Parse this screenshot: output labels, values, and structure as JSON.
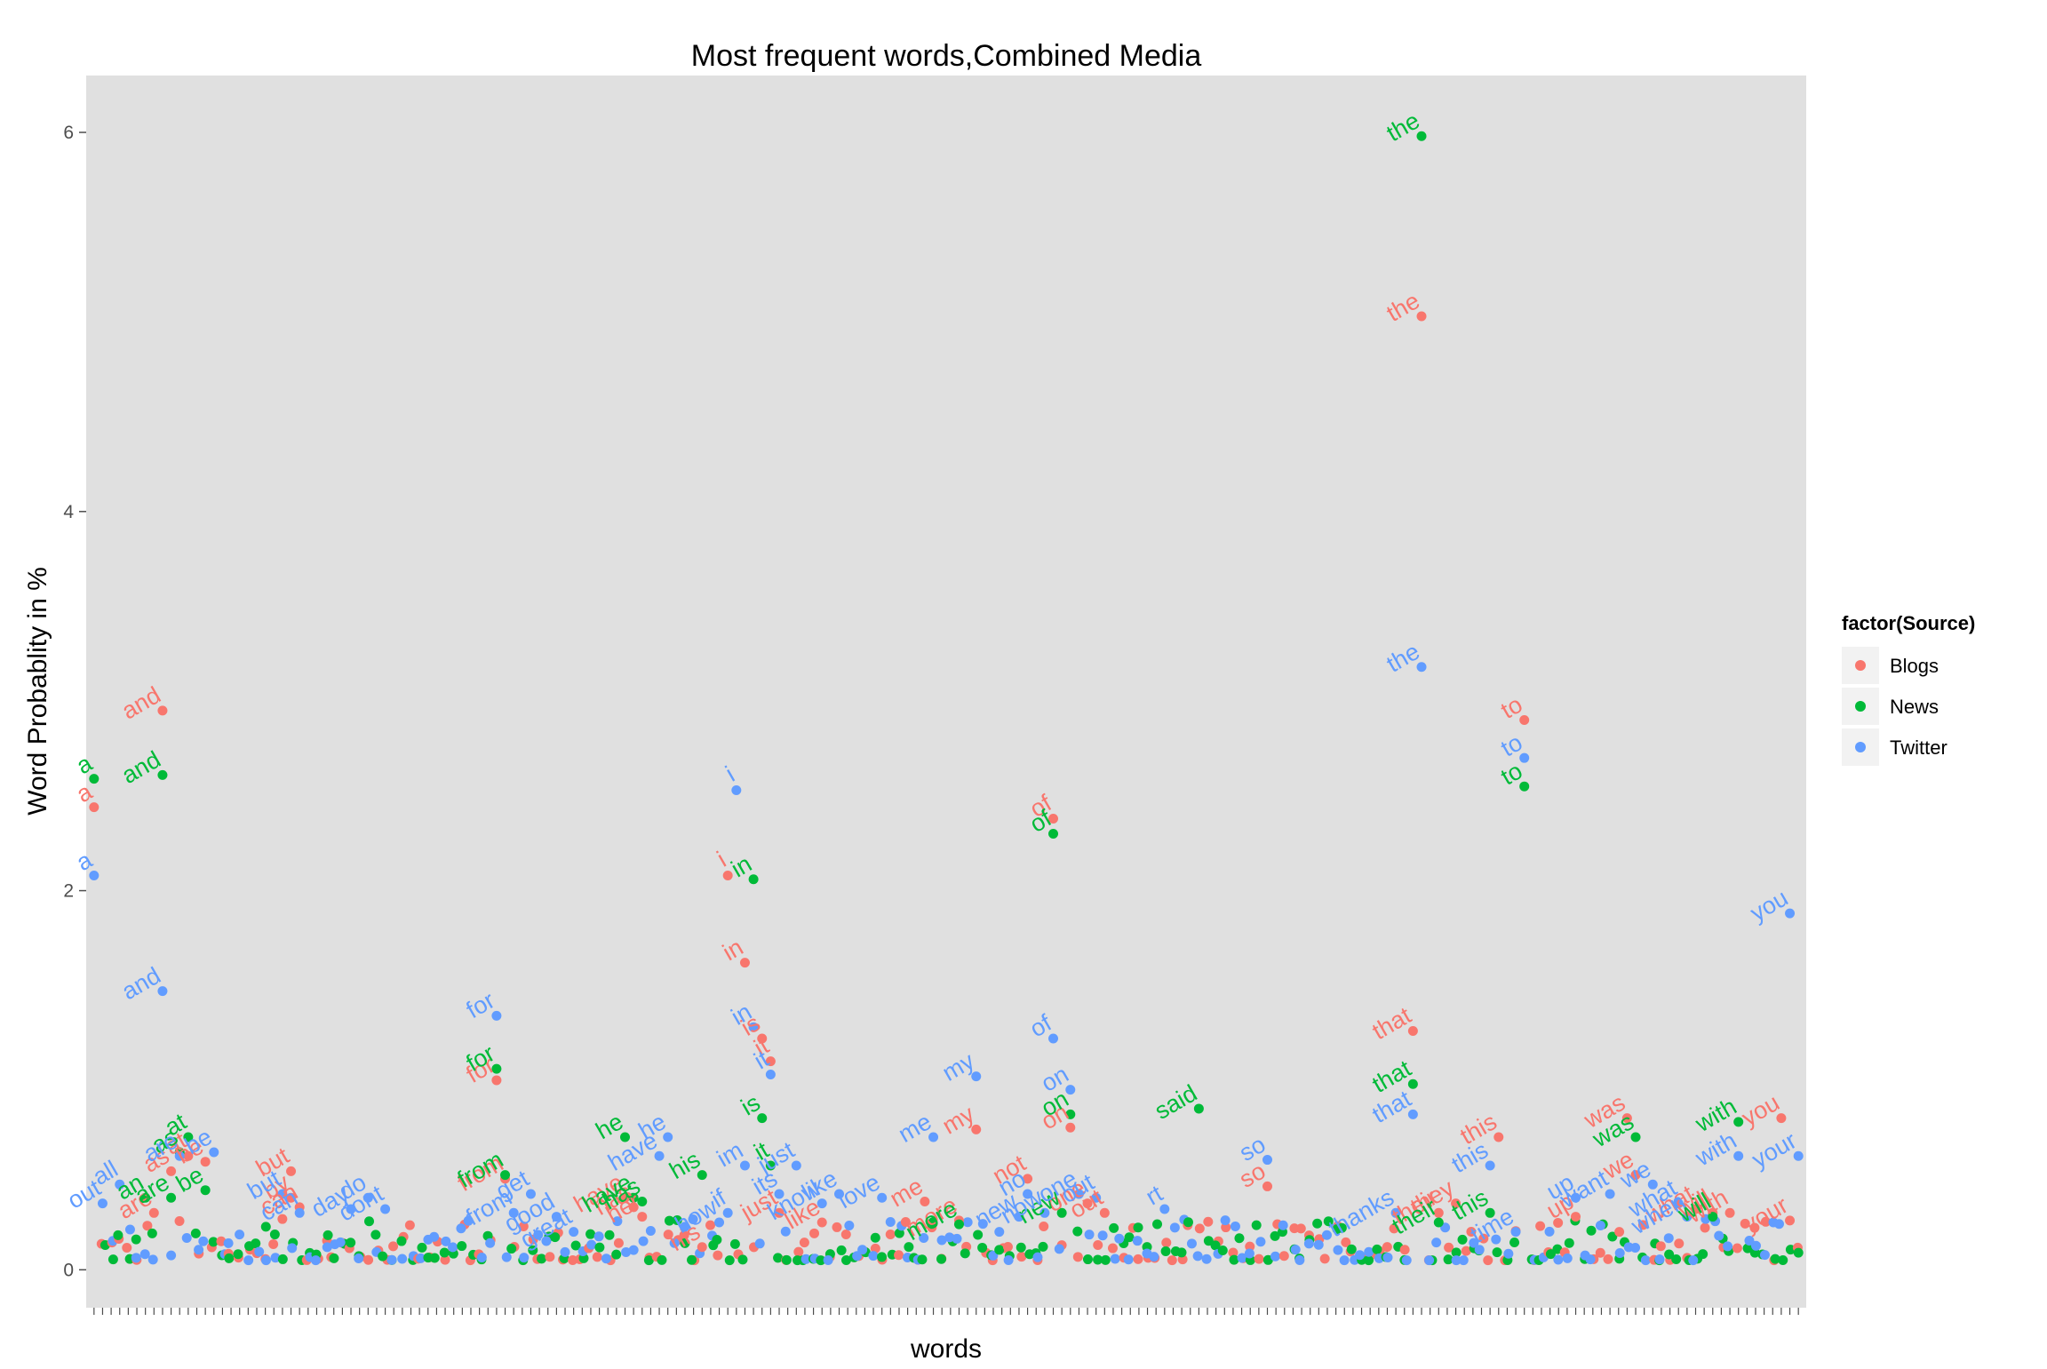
{
  "chart_data": {
    "type": "scatter",
    "title": "Most frequent words,Combined Media",
    "xlabel": "words",
    "ylabel": "Word Probablity in %",
    "ylim": [
      -0.2,
      6.3
    ],
    "yticks": [
      0,
      2,
      4,
      6
    ],
    "x_count": 200,
    "grid": false,
    "panel_background": "#e0e0e0",
    "legend": {
      "title": "factor(Source)",
      "placement": "right",
      "entries": [
        {
          "name": "Blogs",
          "color": "#F8766D"
        },
        {
          "name": "News",
          "color": "#00BA38"
        },
        {
          "name": "Twitter",
          "color": "#619CFF"
        }
      ]
    },
    "series": [
      {
        "name": "Blogs",
        "color": "#F8766D",
        "points": [
          {
            "x": 1,
            "y": 2.44,
            "label": "a"
          },
          {
            "x": 9,
            "y": 2.95,
            "label": "and"
          },
          {
            "x": 8,
            "y": 0.3,
            "label": "are"
          },
          {
            "x": 10,
            "y": 0.52,
            "label": "as"
          },
          {
            "x": 12,
            "y": 0.6,
            "label": "at"
          },
          {
            "x": 14,
            "y": 0.57,
            "label": "be"
          },
          {
            "x": 24,
            "y": 0.52,
            "label": "but"
          },
          {
            "x": 24,
            "y": 0.38,
            "label": "by"
          },
          {
            "x": 25,
            "y": 0.33,
            "label": "can"
          },
          {
            "x": 48,
            "y": 1.0,
            "label": "for"
          },
          {
            "x": 49,
            "y": 0.48,
            "label": "from"
          },
          {
            "x": 63,
            "y": 0.38,
            "label": "have"
          },
          {
            "x": 64,
            "y": 0.33,
            "label": "has"
          },
          {
            "x": 65,
            "y": 0.28,
            "label": "her"
          },
          {
            "x": 72,
            "y": 0.12,
            "label": "his"
          },
          {
            "x": 75,
            "y": 2.08,
            "label": "i"
          },
          {
            "x": 77,
            "y": 1.62,
            "label": "in"
          },
          {
            "x": 79,
            "y": 1.22,
            "label": "is"
          },
          {
            "x": 80,
            "y": 1.1,
            "label": "it"
          },
          {
            "x": 81,
            "y": 0.3,
            "label": "just"
          },
          {
            "x": 86,
            "y": 0.25,
            "label": "like"
          },
          {
            "x": 98,
            "y": 0.36,
            "label": "me"
          },
          {
            "x": 102,
            "y": 0.26,
            "label": "more"
          },
          {
            "x": 104,
            "y": 0.74,
            "label": "my"
          },
          {
            "x": 110,
            "y": 0.48,
            "label": "not"
          },
          {
            "x": 113,
            "y": 2.38,
            "label": "of"
          },
          {
            "x": 115,
            "y": 0.75,
            "label": "on"
          },
          {
            "x": 117,
            "y": 0.35,
            "label": "one"
          },
          {
            "x": 119,
            "y": 0.3,
            "label": "out"
          },
          {
            "x": 138,
            "y": 0.44,
            "label": "so"
          },
          {
            "x": 155,
            "y": 1.26,
            "label": "that"
          },
          {
            "x": 156,
            "y": 5.03,
            "label": "the"
          },
          {
            "x": 158,
            "y": 0.3,
            "label": "their"
          },
          {
            "x": 160,
            "y": 0.35,
            "label": "they"
          },
          {
            "x": 165,
            "y": 0.7,
            "label": "this"
          },
          {
            "x": 168,
            "y": 2.9,
            "label": "to"
          },
          {
            "x": 174,
            "y": 0.28,
            "label": "up"
          },
          {
            "x": 180,
            "y": 0.8,
            "label": "was"
          },
          {
            "x": 181,
            "y": 0.5,
            "label": "we"
          },
          {
            "x": 188,
            "y": 0.32,
            "label": "what"
          },
          {
            "x": 190,
            "y": 0.3,
            "label": "will"
          },
          {
            "x": 192,
            "y": 0.3,
            "label": "with"
          },
          {
            "x": 198,
            "y": 0.8,
            "label": "you"
          },
          {
            "x": 199,
            "y": 0.26,
            "label": "your"
          }
        ]
      },
      {
        "name": "News",
        "color": "#00BA38",
        "points": [
          {
            "x": 1,
            "y": 2.59,
            "label": "a"
          },
          {
            "x": 9,
            "y": 2.61,
            "label": "and"
          },
          {
            "x": 7,
            "y": 0.38,
            "label": "an"
          },
          {
            "x": 10,
            "y": 0.38,
            "label": "are"
          },
          {
            "x": 11,
            "y": 0.62,
            "label": "as"
          },
          {
            "x": 12,
            "y": 0.7,
            "label": "at"
          },
          {
            "x": 14,
            "y": 0.42,
            "label": "be"
          },
          {
            "x": 48,
            "y": 1.06,
            "label": "for"
          },
          {
            "x": 49,
            "y": 0.5,
            "label": "from"
          },
          {
            "x": 63,
            "y": 0.7,
            "label": "he"
          },
          {
            "x": 64,
            "y": 0.38,
            "label": "have"
          },
          {
            "x": 65,
            "y": 0.36,
            "label": "has"
          },
          {
            "x": 72,
            "y": 0.5,
            "label": "his"
          },
          {
            "x": 78,
            "y": 2.06,
            "label": "in"
          },
          {
            "x": 79,
            "y": 0.8,
            "label": "is"
          },
          {
            "x": 80,
            "y": 0.55,
            "label": "it"
          },
          {
            "x": 102,
            "y": 0.24,
            "label": "more"
          },
          {
            "x": 113,
            "y": 2.3,
            "label": "of"
          },
          {
            "x": 115,
            "y": 0.82,
            "label": "on"
          },
          {
            "x": 114,
            "y": 0.3,
            "label": "new"
          },
          {
            "x": 130,
            "y": 0.85,
            "label": "said"
          },
          {
            "x": 155,
            "y": 0.98,
            "label": "that"
          },
          {
            "x": 156,
            "y": 5.98,
            "label": "the"
          },
          {
            "x": 158,
            "y": 0.25,
            "label": "their"
          },
          {
            "x": 164,
            "y": 0.3,
            "label": "this"
          },
          {
            "x": 168,
            "y": 2.55,
            "label": "to"
          },
          {
            "x": 181,
            "y": 0.7,
            "label": "was"
          },
          {
            "x": 190,
            "y": 0.28,
            "label": "will"
          },
          {
            "x": 193,
            "y": 0.78,
            "label": "with"
          }
        ]
      },
      {
        "name": "Twitter",
        "color": "#619CFF",
        "points": [
          {
            "x": 1,
            "y": 2.08,
            "label": "a"
          },
          {
            "x": 2,
            "y": 0.35,
            "label": "out"
          },
          {
            "x": 4,
            "y": 0.45,
            "label": "all"
          },
          {
            "x": 9,
            "y": 1.47,
            "label": "and"
          },
          {
            "x": 11,
            "y": 0.6,
            "label": "are"
          },
          {
            "x": 15,
            "y": 0.62,
            "label": "be"
          },
          {
            "x": 23,
            "y": 0.4,
            "label": "but"
          },
          {
            "x": 25,
            "y": 0.3,
            "label": "can"
          },
          {
            "x": 31,
            "y": 0.32,
            "label": "day"
          },
          {
            "x": 33,
            "y": 0.38,
            "label": "do"
          },
          {
            "x": 35,
            "y": 0.32,
            "label": "dont"
          },
          {
            "x": 48,
            "y": 1.34,
            "label": "for"
          },
          {
            "x": 50,
            "y": 0.3,
            "label": "from"
          },
          {
            "x": 52,
            "y": 0.4,
            "label": "get"
          },
          {
            "x": 55,
            "y": 0.28,
            "label": "good"
          },
          {
            "x": 57,
            "y": 0.2,
            "label": "great"
          },
          {
            "x": 67,
            "y": 0.6,
            "label": "have"
          },
          {
            "x": 68,
            "y": 0.7,
            "label": "he"
          },
          {
            "x": 74,
            "y": 0.25,
            "label": "how"
          },
          {
            "x": 75,
            "y": 0.3,
            "label": "if"
          },
          {
            "x": 77,
            "y": 0.55,
            "label": "im"
          },
          {
            "x": 76,
            "y": 2.53,
            "label": "i"
          },
          {
            "x": 78,
            "y": 1.28,
            "label": "in"
          },
          {
            "x": 80,
            "y": 1.03,
            "label": "it"
          },
          {
            "x": 81,
            "y": 0.4,
            "label": "its"
          },
          {
            "x": 83,
            "y": 0.55,
            "label": "just"
          },
          {
            "x": 86,
            "y": 0.35,
            "label": "know"
          },
          {
            "x": 88,
            "y": 0.4,
            "label": "like"
          },
          {
            "x": 93,
            "y": 0.38,
            "label": "love"
          },
          {
            "x": 99,
            "y": 0.7,
            "label": "me"
          },
          {
            "x": 104,
            "y": 1.02,
            "label": "my"
          },
          {
            "x": 109,
            "y": 0.28,
            "label": "new"
          },
          {
            "x": 110,
            "y": 0.4,
            "label": "no"
          },
          {
            "x": 112,
            "y": 0.3,
            "label": "now"
          },
          {
            "x": 113,
            "y": 1.22,
            "label": "of"
          },
          {
            "x": 115,
            "y": 0.95,
            "label": "on"
          },
          {
            "x": 116,
            "y": 0.4,
            "label": "one"
          },
          {
            "x": 118,
            "y": 0.38,
            "label": "out"
          },
          {
            "x": 126,
            "y": 0.32,
            "label": "rt"
          },
          {
            "x": 138,
            "y": 0.58,
            "label": "so"
          },
          {
            "x": 153,
            "y": 0.3,
            "label": "thanks"
          },
          {
            "x": 155,
            "y": 0.82,
            "label": "that"
          },
          {
            "x": 156,
            "y": 3.18,
            "label": "the"
          },
          {
            "x": 164,
            "y": 0.55,
            "label": "this"
          },
          {
            "x": 167,
            "y": 0.2,
            "label": "time"
          },
          {
            "x": 168,
            "y": 2.7,
            "label": "to"
          },
          {
            "x": 174,
            "y": 0.38,
            "label": "up"
          },
          {
            "x": 178,
            "y": 0.4,
            "label": "want"
          },
          {
            "x": 183,
            "y": 0.45,
            "label": "we"
          },
          {
            "x": 186,
            "y": 0.35,
            "label": "what"
          },
          {
            "x": 187,
            "y": 0.28,
            "label": "when"
          },
          {
            "x": 193,
            "y": 0.6,
            "label": "with"
          },
          {
            "x": 199,
            "y": 1.88,
            "label": "you"
          },
          {
            "x": 200,
            "y": 0.6,
            "label": "your"
          }
        ]
      }
    ]
  }
}
